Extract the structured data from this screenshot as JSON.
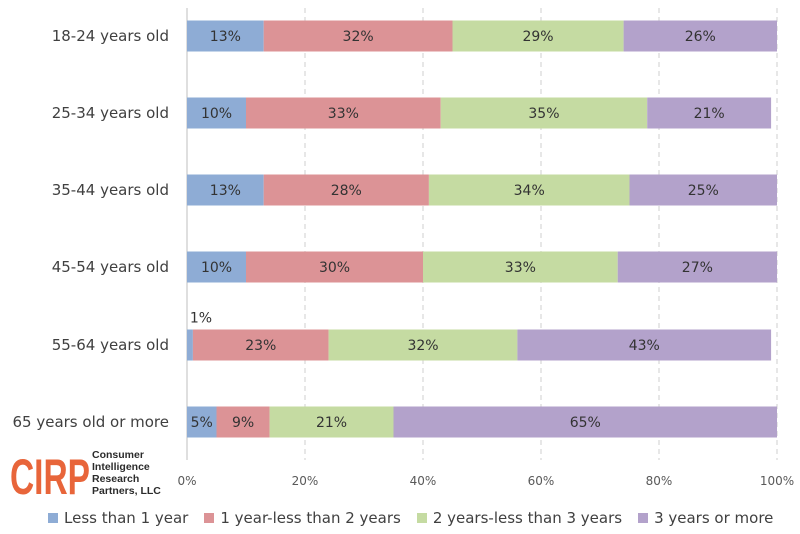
{
  "chart_data": {
    "type": "bar",
    "orientation": "horizontal",
    "stacked": true,
    "categories": [
      "18-24 years old",
      "25-34 years old",
      "35-44 years old",
      "45-54 years old",
      "55-64 years old",
      "65 years old or more"
    ],
    "series": [
      {
        "name": "Less than 1 year",
        "color": "#8eacd5",
        "values": [
          13,
          10,
          13,
          10,
          1,
          5
        ]
      },
      {
        "name": "1 year-less than 2 years",
        "color": "#dc9396",
        "values": [
          32,
          33,
          28,
          30,
          23,
          9
        ]
      },
      {
        "name": "2 years-less than 3 years",
        "color": "#c5dba2",
        "values": [
          29,
          35,
          34,
          33,
          32,
          21
        ]
      },
      {
        "name": "3 years or more",
        "color": "#b3a2cb",
        "values": [
          26,
          21,
          25,
          27,
          43,
          65
        ]
      }
    ],
    "xlim": [
      0,
      100
    ],
    "xticks": [
      "0%",
      "20%",
      "40%",
      "60%",
      "80%",
      "100%"
    ],
    "grid": "vertical dashed",
    "legend_position": "bottom"
  },
  "logo": {
    "mark": "CIRP",
    "lines": [
      "Consumer",
      "Intelligence",
      "Research",
      "Partners, LLC"
    ],
    "color": "#e8653a"
  }
}
